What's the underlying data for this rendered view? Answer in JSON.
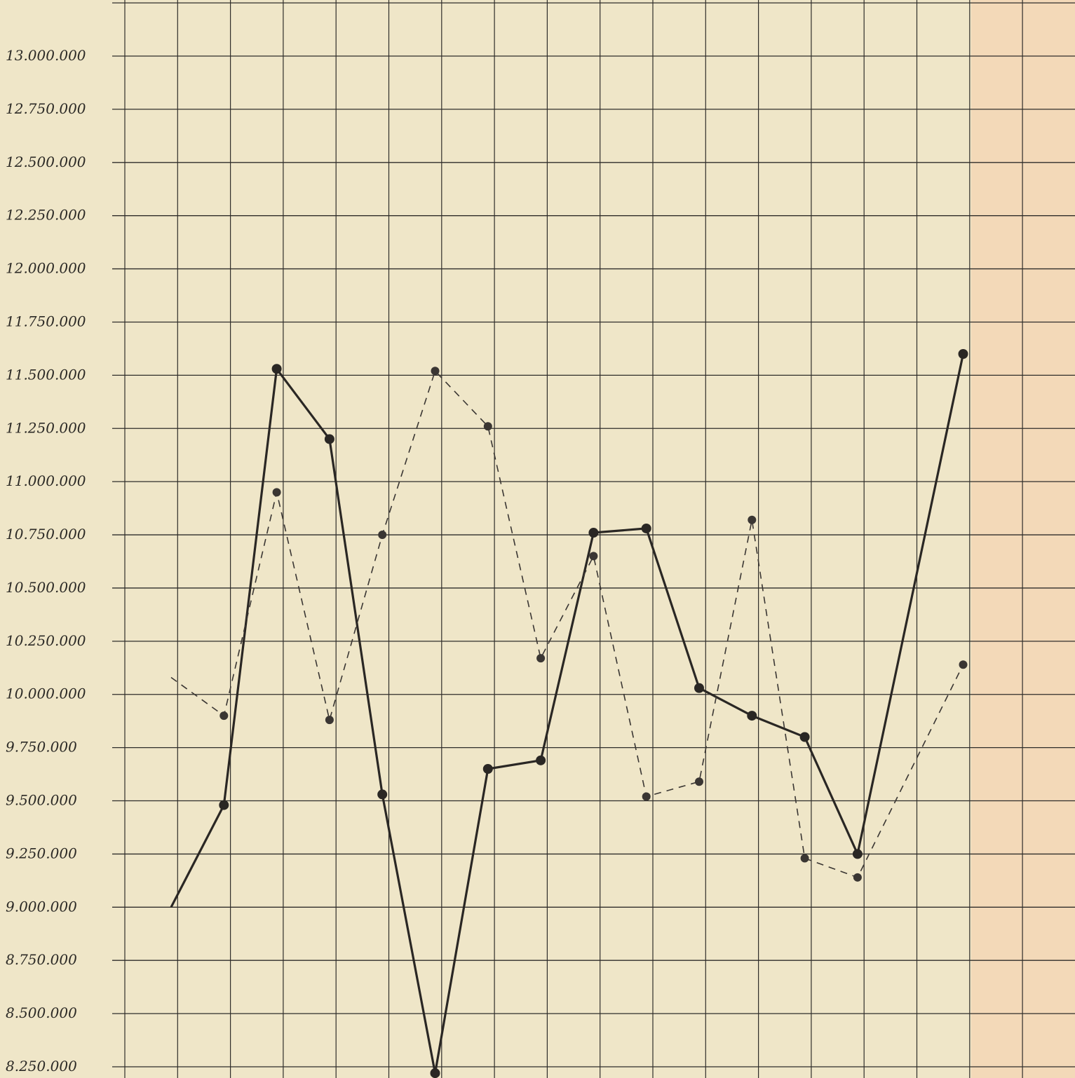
{
  "colors": {
    "paper": "#efe6c8",
    "paper_edge": "#f3d9b8",
    "grid": "#2f2d2a",
    "series_solid": "#2a2724",
    "series_dashed": "#3a3633"
  },
  "chart_data": {
    "type": "line",
    "title": "",
    "xlabel": "",
    "ylabel": "",
    "grid": true,
    "legend": "none",
    "ylim": [
      8250000,
      13000000
    ],
    "y_tick_labels": [
      "13.000.000",
      "12.750.000",
      "12.500.000",
      "12.250.000",
      "12.000.000",
      "11.750.000",
      "11.500.000",
      "11.250.000",
      "11.000.000",
      "10.750.000",
      "10.500.000",
      "10.250.000",
      "10.000.000",
      "9.750.000",
      "9.500.000",
      "9.250.000",
      "9.000.000",
      "8.750.000",
      "8.500.000",
      "8.250.000"
    ],
    "y_tick_values": [
      13000000,
      12750000,
      12500000,
      12250000,
      12000000,
      11750000,
      11500000,
      11250000,
      11000000,
      10750000,
      10500000,
      10250000,
      10000000,
      9750000,
      9500000,
      9250000,
      9000000,
      8750000,
      8500000,
      8250000
    ],
    "x": [
      1,
      2,
      3,
      4,
      5,
      6,
      7,
      8,
      9,
      10,
      11,
      12,
      13,
      14,
      15,
      16
    ],
    "series": [
      {
        "style": "solid",
        "markers": [
          false,
          true,
          true,
          true,
          true,
          true,
          true,
          true,
          true,
          true,
          true,
          true,
          true,
          true,
          true,
          true
        ],
        "values": [
          9000000,
          9480000,
          11530000,
          11200000,
          9530000,
          8220000,
          9650000,
          9690000,
          10760000,
          10780000,
          10030000,
          9900000,
          9800000,
          9250000,
          null,
          11600000
        ]
      },
      {
        "style": "dashed",
        "markers": [
          false,
          true,
          true,
          true,
          true,
          true,
          true,
          true,
          true,
          true,
          true,
          true,
          true,
          true,
          true,
          true
        ],
        "values": [
          10080000,
          9900000,
          10950000,
          9880000,
          10750000,
          11520000,
          11260000,
          10170000,
          10650000,
          9520000,
          9590000,
          10820000,
          9230000,
          9140000,
          null,
          10140000
        ]
      }
    ]
  }
}
